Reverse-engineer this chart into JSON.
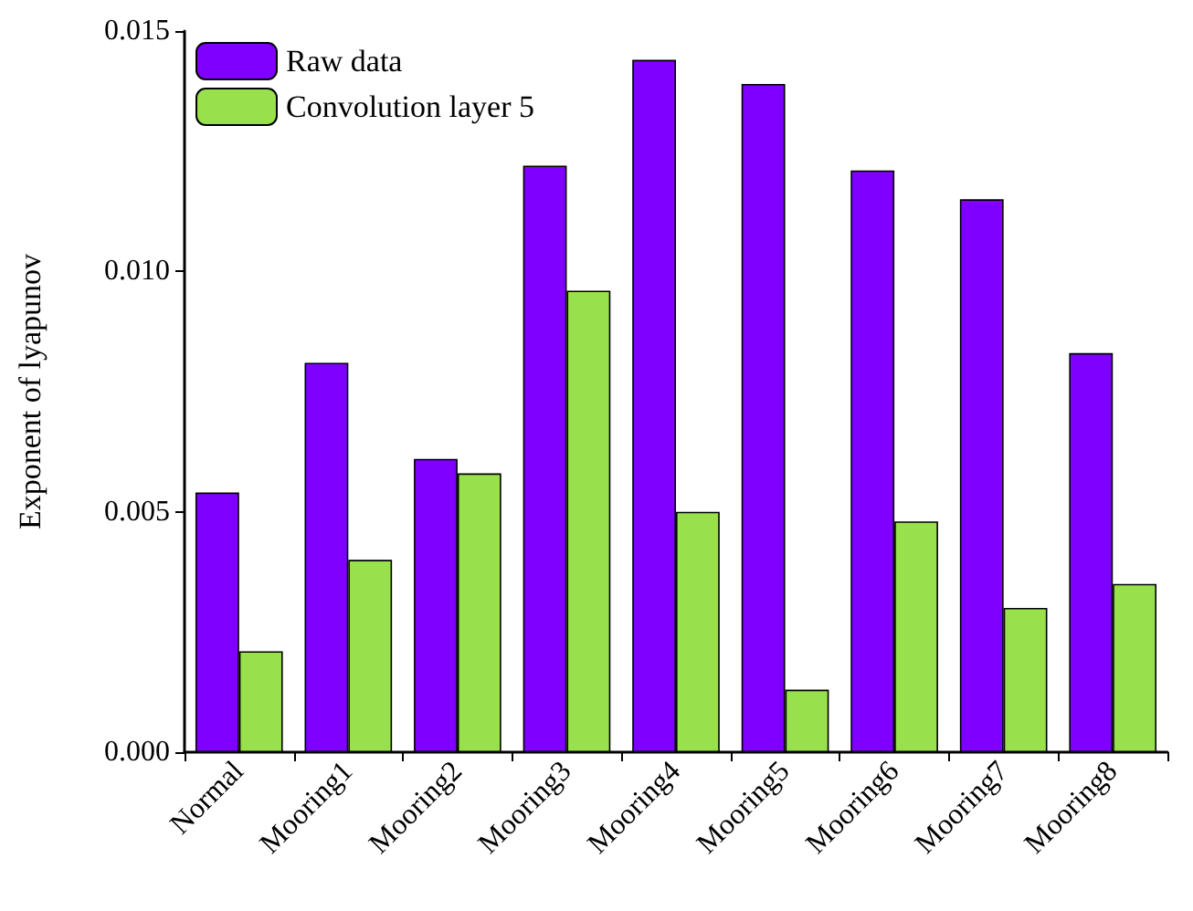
{
  "chart_data": {
    "type": "bar",
    "ylabel": "Exponent of lyapunov",
    "categories": [
      "Normal",
      "Mooring1",
      "Mooring2",
      "Mooring3",
      "Mooring4",
      "Mooring5",
      "Mooring6",
      "Mooring7",
      "Mooring8"
    ],
    "series": [
      {
        "name": "Raw data",
        "color": "#8000ff",
        "values": [
          0.0054,
          0.0081,
          0.0061,
          0.0122,
          0.0144,
          0.0139,
          0.0121,
          0.0115,
          0.0083
        ]
      },
      {
        "name": "Convolution layer 5",
        "color": "#99e04d",
        "values": [
          0.0021,
          0.004,
          0.0058,
          0.0096,
          0.005,
          0.0013,
          0.0048,
          0.003,
          0.0035
        ]
      }
    ],
    "ylim": [
      0,
      0.015
    ],
    "yticks": [
      {
        "value": 0,
        "label": "0.000"
      },
      {
        "value": 0.005,
        "label": "0.005"
      },
      {
        "value": 0.01,
        "label": "0.010"
      },
      {
        "value": 0.015,
        "label": "0.015"
      }
    ],
    "grid": false,
    "legend": "top left"
  }
}
